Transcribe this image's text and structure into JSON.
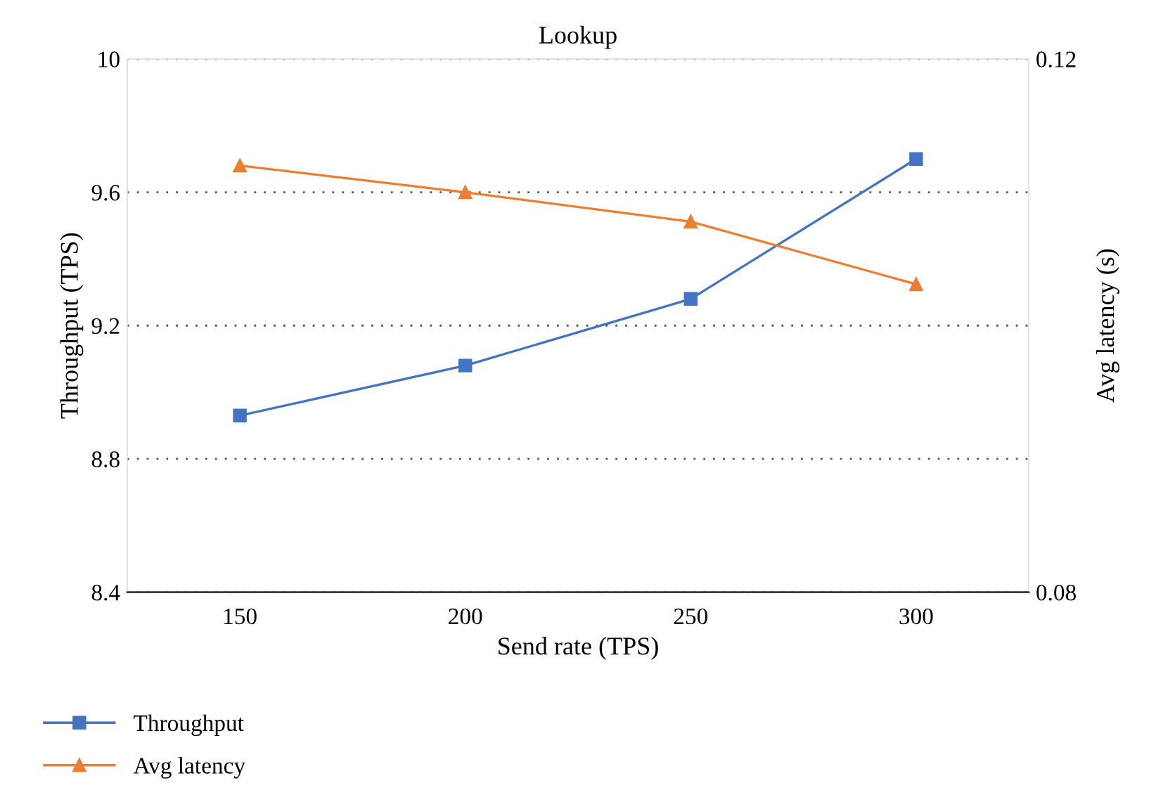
{
  "chart_data": {
    "type": "line",
    "title": "Lookup",
    "xlabel": "Send rate (TPS)",
    "ylabel": "Throughput (TPS)",
    "y2label": "Avg latency (s)",
    "categories": [
      "150",
      "200",
      "250",
      "300"
    ],
    "series": [
      {
        "name": "Throughput",
        "color": "#4472c4",
        "marker": "square",
        "values": [
          8.93,
          9.08,
          9.28,
          9.7
        ]
      },
      {
        "name": "Avg latency",
        "color": "#ed7d31",
        "marker": "triangle",
        "axis": "y2",
        "values": [
          0.112,
          0.11,
          0.1078,
          0.1031
        ]
      }
    ],
    "ylim": [
      8.4,
      10
    ],
    "yticks": [
      8.4,
      8.8,
      9.2,
      9.6,
      10
    ],
    "y2lim": [
      0.08,
      0.12
    ],
    "y2ticks": [
      0.08,
      0.12
    ],
    "grid": "y",
    "legend": "bottom",
    "line_style": "solid"
  }
}
